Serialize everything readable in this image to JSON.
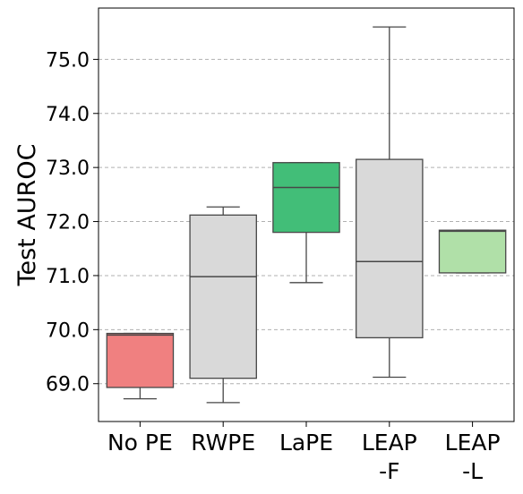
{
  "chart_data": {
    "type": "box",
    "title": "",
    "xlabel": "",
    "ylabel": "Test AUROC",
    "ylim": [
      68.3,
      75.95
    ],
    "yticks": [
      69.0,
      70.0,
      71.0,
      72.0,
      73.0,
      74.0,
      75.0
    ],
    "ytick_labels": [
      "69.0",
      "70.0",
      "71.0",
      "72.0",
      "73.0",
      "74.0",
      "75.0"
    ],
    "grid": "y-dashed",
    "categories": [
      {
        "label_lines": [
          "No PE"
        ],
        "color": "#f08080",
        "whisker_low": 68.72,
        "q1": 68.93,
        "median": 69.9,
        "q3": 69.93,
        "whisker_high": 69.93
      },
      {
        "label_lines": [
          "RWPE"
        ],
        "color": "#d9d9d9",
        "whisker_low": 68.65,
        "q1": 69.1,
        "median": 70.98,
        "q3": 72.12,
        "whisker_high": 72.27
      },
      {
        "label_lines": [
          "LaPE"
        ],
        "color": "#42be78",
        "whisker_low": 70.87,
        "q1": 71.8,
        "median": 72.63,
        "q3": 73.09,
        "whisker_high": 73.09
      },
      {
        "label_lines": [
          "LEAP",
          "-F"
        ],
        "color": "#d9d9d9",
        "whisker_low": 69.12,
        "q1": 69.85,
        "median": 71.26,
        "q3": 73.15,
        "whisker_high": 75.6
      },
      {
        "label_lines": [
          "LEAP",
          "-L"
        ],
        "color": "#b0e0a8",
        "whisker_low": 71.05,
        "q1": 71.05,
        "median": 71.82,
        "q3": 71.84,
        "whisker_high": 71.84
      }
    ]
  }
}
